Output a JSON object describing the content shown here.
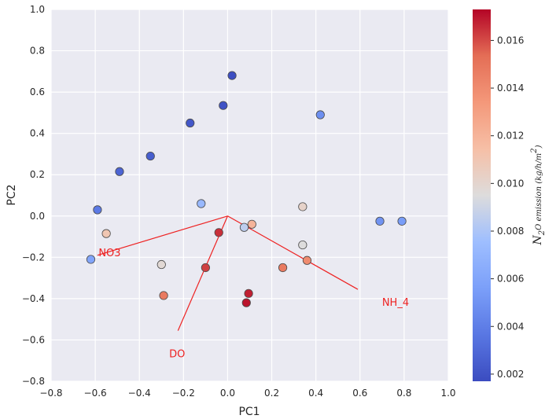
{
  "chart_data": {
    "type": "scatter",
    "xlabel": "PC1",
    "ylabel": "PC2",
    "xlim": [
      -0.8,
      1.0
    ],
    "ylim": [
      -0.8,
      1.0
    ],
    "xticks": [
      -0.8,
      -0.6,
      -0.4,
      -0.2,
      0.0,
      0.2,
      0.4,
      0.6,
      0.8,
      1.0
    ],
    "yticks": [
      -0.8,
      -0.6,
      -0.4,
      -0.2,
      0.0,
      0.2,
      0.4,
      0.6,
      0.8,
      1.0
    ],
    "xtick_labels": [
      "−0.8",
      "−0.6",
      "−0.4",
      "−0.2",
      "0.0",
      "0.2",
      "0.4",
      "0.6",
      "0.8",
      "1.0"
    ],
    "ytick_labels": [
      "−0.8",
      "−0.6",
      "−0.4",
      "−0.2",
      "0.0",
      "0.2",
      "0.4",
      "0.6",
      "0.8",
      "1.0"
    ],
    "grid": true,
    "background_color": "#eaeaf2",
    "points": [
      {
        "x": 0.02,
        "y": 0.68,
        "c": 0.0018
      },
      {
        "x": -0.02,
        "y": 0.535,
        "c": 0.002
      },
      {
        "x": -0.17,
        "y": 0.45,
        "c": 0.0022
      },
      {
        "x": 0.42,
        "y": 0.49,
        "c": 0.0048
      },
      {
        "x": -0.35,
        "y": 0.29,
        "c": 0.0025
      },
      {
        "x": -0.49,
        "y": 0.215,
        "c": 0.0028
      },
      {
        "x": -0.59,
        "y": 0.03,
        "c": 0.0038
      },
      {
        "x": -0.12,
        "y": 0.06,
        "c": 0.0072
      },
      {
        "x": 0.34,
        "y": 0.045,
        "c": 0.0102
      },
      {
        "x": 0.69,
        "y": -0.025,
        "c": 0.005
      },
      {
        "x": 0.79,
        "y": -0.025,
        "c": 0.0055
      },
      {
        "x": -0.55,
        "y": -0.085,
        "c": 0.011
      },
      {
        "x": 0.075,
        "y": -0.055,
        "c": 0.0085
      },
      {
        "x": 0.11,
        "y": -0.04,
        "c": 0.012
      },
      {
        "x": -0.04,
        "y": -0.08,
        "c": 0.0165
      },
      {
        "x": -0.62,
        "y": -0.21,
        "c": 0.006
      },
      {
        "x": 0.34,
        "y": -0.14,
        "c": 0.0095
      },
      {
        "x": 0.36,
        "y": -0.215,
        "c": 0.014
      },
      {
        "x": -0.3,
        "y": -0.235,
        "c": 0.0098
      },
      {
        "x": -0.1,
        "y": -0.25,
        "c": 0.0162
      },
      {
        "x": 0.25,
        "y": -0.25,
        "c": 0.0148
      },
      {
        "x": -0.29,
        "y": -0.385,
        "c": 0.0148
      },
      {
        "x": 0.095,
        "y": -0.375,
        "c": 0.0168
      },
      {
        "x": 0.085,
        "y": -0.42,
        "c": 0.017
      }
    ],
    "loadings": [
      {
        "name": "NO3",
        "x": -0.59,
        "y": -0.19,
        "label_x": -0.585,
        "label_y": -0.175
      },
      {
        "name": "DO",
        "x": -0.225,
        "y": -0.555,
        "label_x": -0.265,
        "label_y": -0.665
      },
      {
        "name": "NH_4",
        "x": 0.59,
        "y": -0.355,
        "label_x": 0.7,
        "label_y": -0.415
      }
    ],
    "loading_color": "#ee2222",
    "colorbar": {
      "label": "$N_2O\\ emission\\ (kg/h/m^2)$",
      "min": 0.0017,
      "max": 0.0173,
      "ticks": [
        0.002,
        0.004,
        0.006,
        0.008,
        0.01,
        0.012,
        0.014,
        0.016
      ],
      "tick_labels": [
        "0.002",
        "0.004",
        "0.006",
        "0.008",
        "0.010",
        "0.012",
        "0.014",
        "0.016"
      ],
      "colormap": "coolwarm"
    }
  }
}
